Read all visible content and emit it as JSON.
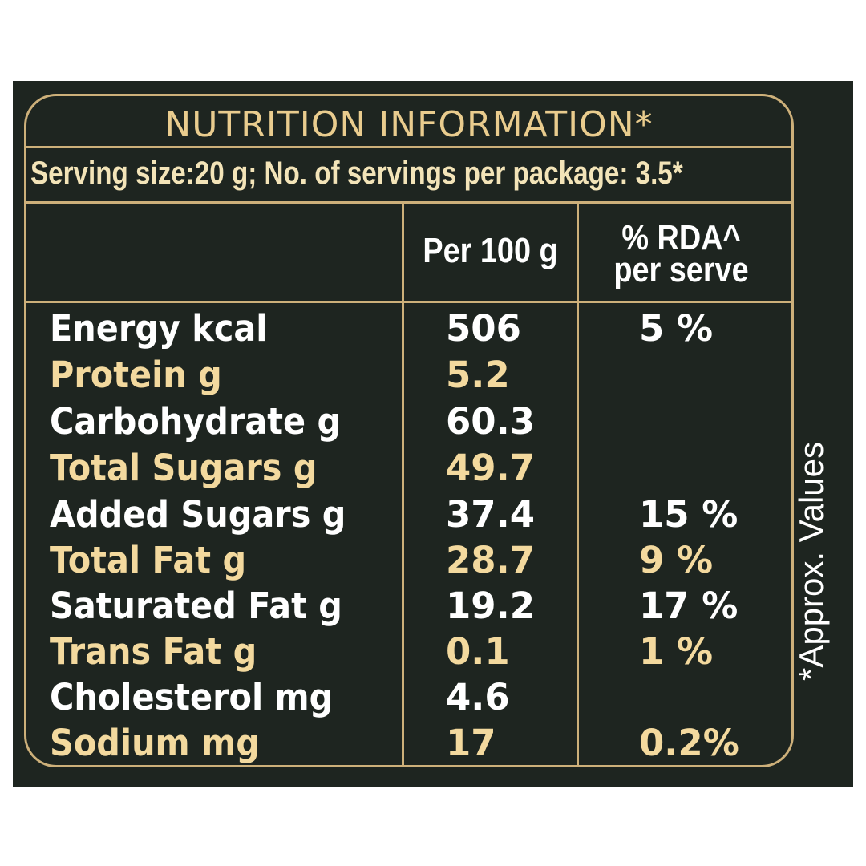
{
  "label": {
    "title": "NUTRITION INFORMATION*",
    "serving_line": "Serving size:20 g; No. of servings per package: 3.5*",
    "column_headers": {
      "per100": "Per 100 g",
      "rda_line1": "% RDA^",
      "rda_line2": "per serve"
    },
    "rows": [
      {
        "nutrient": "Energy kcal",
        "per100": "506",
        "rda": "5 %"
      },
      {
        "nutrient": "Protein g",
        "per100": "5.2",
        "rda": ""
      },
      {
        "nutrient": "Carbohydrate g",
        "per100": "60.3",
        "rda": ""
      },
      {
        "nutrient": "Total Sugars g",
        "per100": "49.7",
        "rda": ""
      },
      {
        "nutrient": "Added Sugars g",
        "per100": "37.4",
        "rda": "15 %"
      },
      {
        "nutrient": "Total Fat g",
        "per100": "28.7",
        "rda": "9 %"
      },
      {
        "nutrient": "Saturated Fat g",
        "per100": "19.2",
        "rda": "17 %"
      },
      {
        "nutrient": "Trans Fat g",
        "per100": "0.1",
        "rda": "1 %"
      },
      {
        "nutrient": "Cholesterol mg",
        "per100": "4.6",
        "rda": ""
      },
      {
        "nutrient": "Sodium mg",
        "per100": "17",
        "rda": "0.2%"
      }
    ],
    "side_note": "*Approx. Values"
  },
  "colors": {
    "background": "#1e2520",
    "border": "#cdb07a",
    "gold_text": "#f3d99e",
    "white_text": "#ffffff"
  }
}
